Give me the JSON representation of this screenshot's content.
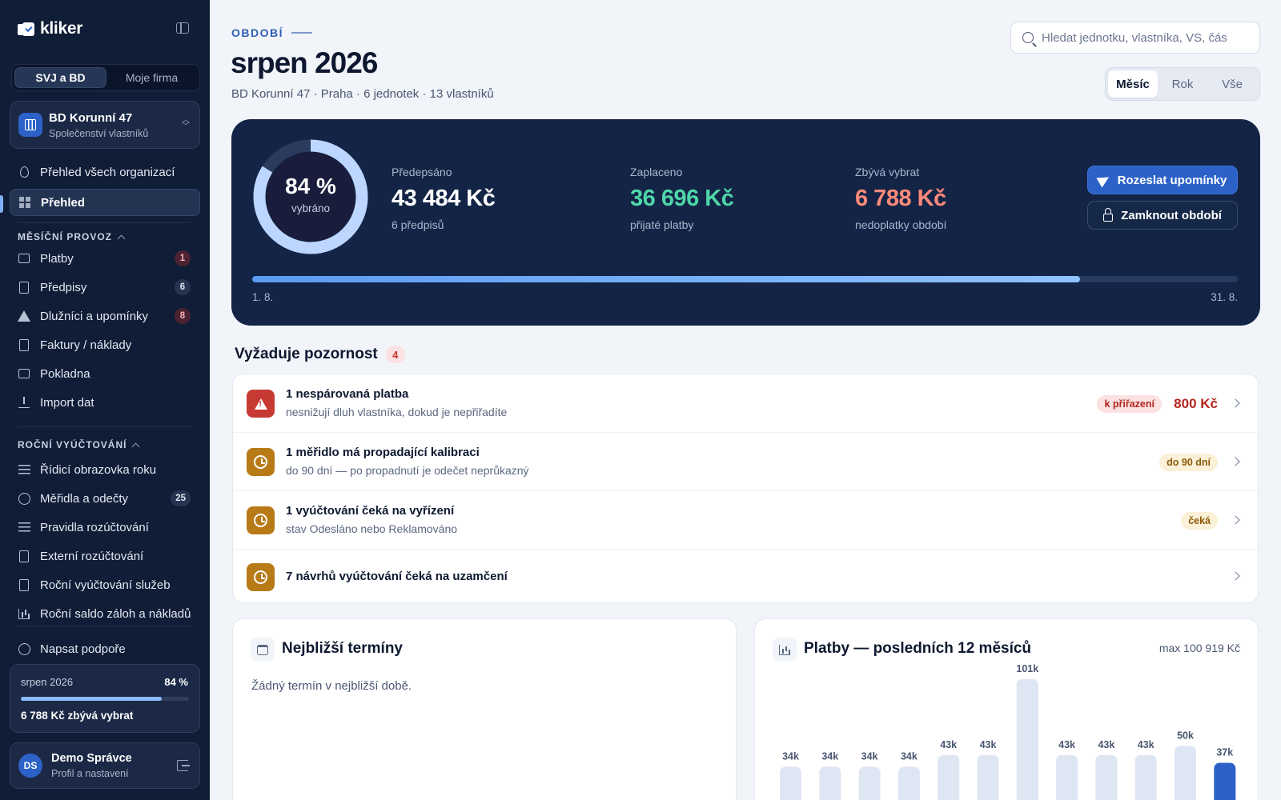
{
  "brand": {
    "name": "kliker"
  },
  "scope_switch": {
    "options": [
      "SVJ a BD",
      "Moje firma"
    ],
    "active": 0
  },
  "organization": {
    "name": "BD Korunní 47",
    "type": "Společenství vlastníků"
  },
  "nav": {
    "all_orgs": "Přehled všech organizací",
    "overview": "Přehled",
    "section_monthly": "MĚSÍČNÍ PROVOZ",
    "monthly_items": [
      {
        "label": "Platby",
        "icon": "card-icon",
        "badge": "1",
        "badge_color": "red"
      },
      {
        "label": "Předpisy",
        "icon": "document-icon",
        "badge": "6",
        "badge_color": "gray"
      },
      {
        "label": "Dlužníci a upomínky",
        "icon": "warning-icon",
        "badge": "8",
        "badge_color": "red"
      },
      {
        "label": "Faktury / náklady",
        "icon": "invoice-icon",
        "badge": "",
        "badge_color": ""
      },
      {
        "label": "Pokladna",
        "icon": "wallet-icon",
        "badge": "",
        "badge_color": ""
      },
      {
        "label": "Import dat",
        "icon": "download-icon",
        "badge": "",
        "badge_color": ""
      }
    ],
    "section_annual": "ROČNÍ VYÚČTOVÁNÍ",
    "annual_items": [
      {
        "label": "Řídicí obrazovka roku",
        "icon": "checklist-icon",
        "badge": ""
      },
      {
        "label": "Měřidla a odečty",
        "icon": "gauge-icon",
        "badge": "25"
      },
      {
        "label": "Pravidla rozúčtování",
        "icon": "sliders-icon",
        "badge": ""
      },
      {
        "label": "Externí rozúčtování",
        "icon": "external-doc-icon",
        "badge": ""
      },
      {
        "label": "Roční vyúčtování služeb",
        "icon": "document-icon",
        "badge": ""
      },
      {
        "label": "Roční saldo záloh a nákladů",
        "icon": "bar-chart-icon",
        "badge": ""
      }
    ],
    "support": "Napsat podpoře"
  },
  "period_card": {
    "label": "srpen 2026",
    "percent_text": "84 %",
    "progress": 0.84,
    "remaining": "6 788 Kč zbývá vybrat"
  },
  "user": {
    "initials": "DS",
    "name": "Demo Správce",
    "subtitle": "Profil a nastavení"
  },
  "header": {
    "eyebrow": "OBDOBÍ",
    "title": "srpen 2026",
    "subtitle": "BD Korunní 47 · Praha · 6 jednotek · 13 vlastníků",
    "search_placeholder": "Hledat jednotku, vlastníka, VS, čás",
    "range_tabs": [
      "Měsíc",
      "Rok",
      "Vše"
    ],
    "range_active": 0
  },
  "hero": {
    "ring_percent": "84 %",
    "ring_label": "vybráno",
    "collected_fraction": 0.84,
    "kpis": [
      {
        "label": "Předepsáno",
        "value": "43 484 Kč",
        "sub": "6 předpisů",
        "color": "#ffffff"
      },
      {
        "label": "Zaplaceno",
        "value": "36 696 Kč",
        "sub": "přijaté platby",
        "color": "#4fd6a8"
      },
      {
        "label": "Zbývá vybrat",
        "value": "6 788 Kč",
        "sub": "nedoplatky období",
        "color": "#ff8a7a"
      }
    ],
    "btn_remind": "Rozeslat upomínky",
    "btn_lock": "Zamknout období",
    "period_start": "1. 8.",
    "period_end": "31. 8.",
    "period_progress": 0.84
  },
  "attention": {
    "title": "Vyžaduje pozornost",
    "count": "4",
    "items": [
      {
        "icon": "warning-icon",
        "tone": "red",
        "title": "1 nespárovaná platba",
        "desc": "nesnižují dluh vlastníka, dokud je nepřiřadíte",
        "tag": "k přiřazení",
        "tag_tone": "red",
        "amount": "800 Kč"
      },
      {
        "icon": "clock-icon",
        "tone": "amber",
        "title": "1 měřidlo má propadající kalibraci",
        "desc": "do 90 dní — po propadnutí je odečet neprůkazný",
        "tag": "do 90 dní",
        "tag_tone": "amber",
        "amount": ""
      },
      {
        "icon": "clock-icon",
        "tone": "amber",
        "title": "1 vyúčtování čeká na vyřízení",
        "desc": "stav Odesláno nebo Reklamováno",
        "tag": "čeká",
        "tag_tone": "amber",
        "amount": ""
      },
      {
        "icon": "clock-icon",
        "tone": "amber",
        "title": "7 návrhů vyúčtování čeká na uzamčení",
        "desc": "",
        "tag": "",
        "tag_tone": "",
        "amount": ""
      }
    ]
  },
  "deadlines": {
    "title": "Nejbližší termíny",
    "empty": "Žádný termín v nejbližší době."
  },
  "payments_chart": {
    "title": "Platby — posledních 12 měsíců",
    "max_label": "max 100 919 Kč"
  },
  "chart_data": {
    "type": "bar",
    "title": "Platby — posledních 12 měsíců",
    "values": [
      34,
      34,
      34,
      34,
      43,
      43,
      101,
      43,
      43,
      43,
      50,
      37
    ],
    "labels": [
      "34k",
      "34k",
      "34k",
      "34k",
      "43k",
      "43k",
      "101k",
      "43k",
      "43k",
      "43k",
      "50k",
      "37k"
    ],
    "highlight_index": 11,
    "bar_color": "#dfe6f3",
    "highlight_color": "#2c62c8"
  }
}
